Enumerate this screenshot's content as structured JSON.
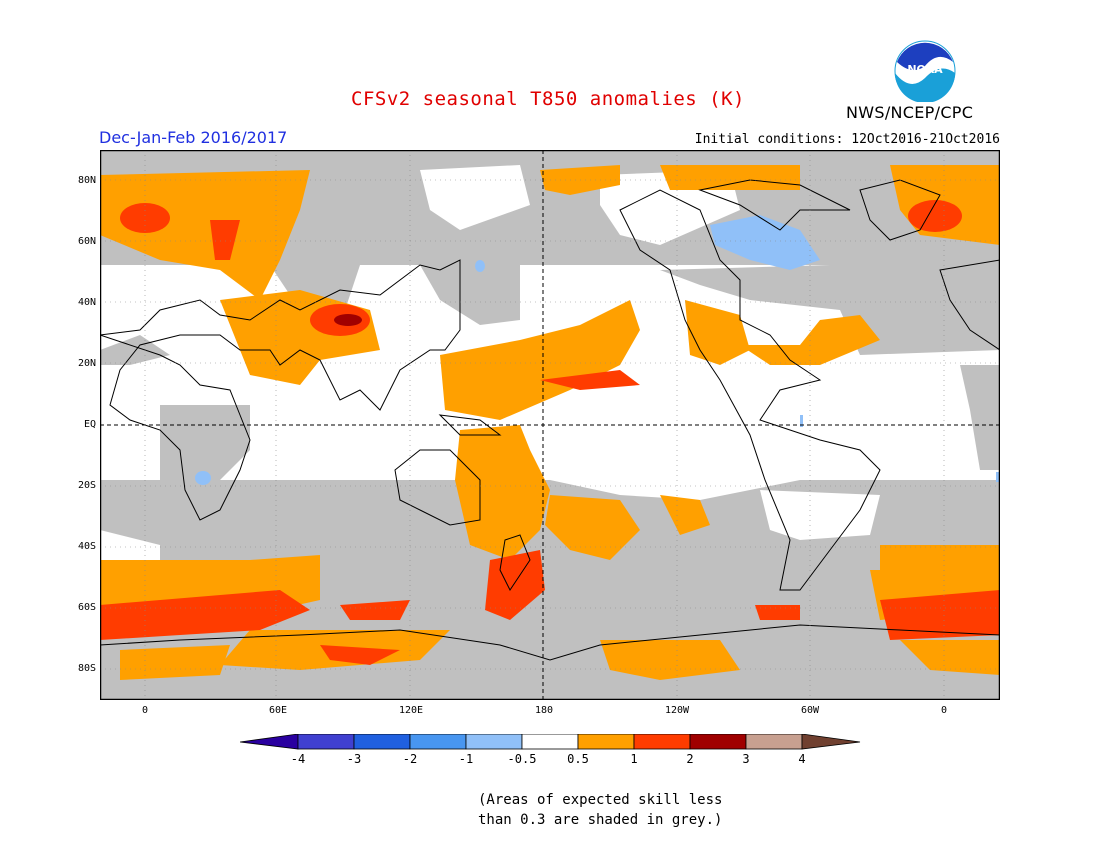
{
  "header": {
    "title": "CFSv2 seasonal T850 anomalies (K)",
    "agency": "NWS/NCEP/CPC",
    "season": "Dec-Jan-Feb 2016/2017",
    "initial_conditions": "Initial conditions: 12Oct2016-21Oct2016",
    "logo_text": "NOAA"
  },
  "map": {
    "projection": "equirectangular",
    "lon_range": [
      -30,
      390
    ],
    "lat_range": [
      -90,
      90
    ],
    "lat_labels": [
      "80N",
      "60N",
      "40N",
      "20N",
      "EQ",
      "20S",
      "40S",
      "60S",
      "80S"
    ],
    "lon_labels": [
      "0",
      "60E",
      "120E",
      "180",
      "120W",
      "60W",
      "0"
    ],
    "colors": {
      "grey": "#c0c0c0",
      "neg_half": "#90c0f8",
      "pos_half": "#ffa000",
      "pos_one": "#ff3c00",
      "pos_two": "#a00000",
      "coast": "#000000"
    }
  },
  "colorbar": {
    "labels": [
      "-4",
      "-3",
      "-2",
      "-1",
      "-0.5",
      "0.5",
      "1",
      "2",
      "3",
      "4"
    ],
    "colors": [
      "#2a00a0",
      "#4040d0",
      "#2060e0",
      "#4896f0",
      "#90c0f8",
      "#ffffff",
      "#ffa000",
      "#ff3c00",
      "#a00000",
      "#c8a090",
      "#704030"
    ]
  },
  "note": {
    "line1": "(Areas of expected skill less",
    "line2": "than 0.3 are shaded in grey.)"
  }
}
